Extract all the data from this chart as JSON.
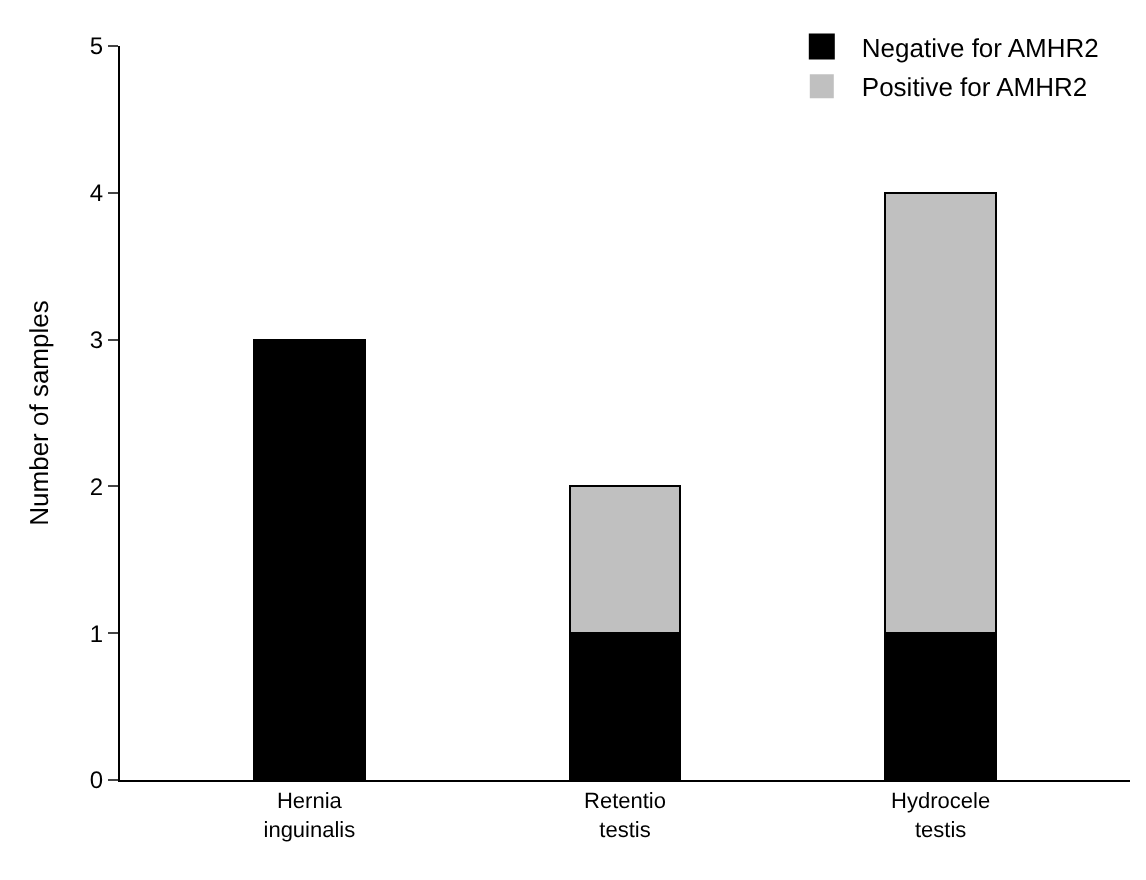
{
  "chart_data": {
    "type": "bar",
    "stacked": true,
    "ylabel": "Number of samples",
    "categories": [
      "Hernia inguinalis",
      "Retentio testis",
      "Hydrocele testis"
    ],
    "series": [
      {
        "name": "Negative for AMHR2",
        "color": "#000000",
        "values": [
          3,
          1,
          1
        ]
      },
      {
        "name": "Positive for AMHR2",
        "color": "#c0c0c0",
        "values": [
          0,
          1,
          3
        ]
      }
    ],
    "ylim": [
      0,
      5
    ],
    "yticks": [
      0,
      1,
      2,
      3,
      4,
      5
    ],
    "grid": false,
    "legend": "top right"
  }
}
